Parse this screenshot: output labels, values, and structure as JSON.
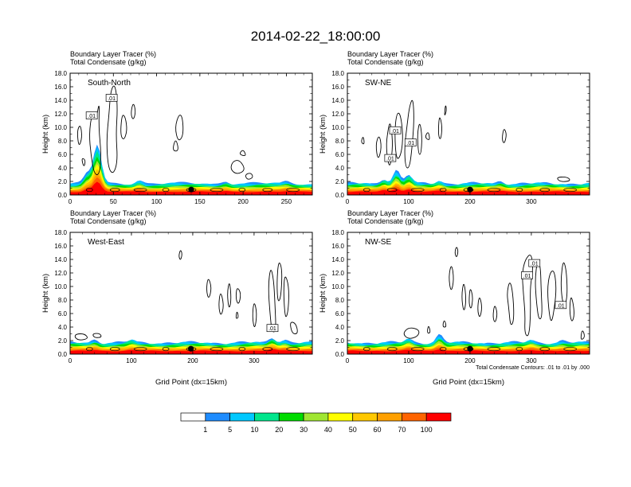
{
  "figure": {
    "title": "2014-02-22_18:00:00",
    "contour_note": "Total Condensate Contours: .01 to .01 by .000"
  },
  "colorbar": {
    "labels": [
      "1",
      "5",
      "10",
      "20",
      "30",
      "40",
      "50",
      "60",
      "70",
      "100"
    ],
    "colors": [
      "#ffffff",
      "#1e8cff",
      "#00c8ff",
      "#00e68c",
      "#00dc00",
      "#a0e632",
      "#ffff00",
      "#ffc800",
      "#ffa000",
      "#ff6400",
      "#ff0000"
    ]
  },
  "chart_data": [
    {
      "type": "heatmap",
      "title_lines": [
        "Boundary Layer Tracer   (%)",
        "Total Condensate   (g/kg)"
      ],
      "region": "South-North",
      "ylabel": "Height (km)",
      "xlabel": "",
      "xlim": [
        0,
        280
      ],
      "xticks": [
        0,
        50,
        100,
        150,
        200,
        250
      ],
      "ylim": [
        0,
        18
      ],
      "yticks": [
        "0.0",
        "2.0",
        "4.0",
        "6.0",
        "8.0",
        "10.0",
        "12.0",
        "14.0",
        "16.0",
        "18.0"
      ],
      "marker_x": 140,
      "contour_labels": [
        ".01",
        ".01"
      ],
      "contour_label_pos": [
        [
          25,
          11.7
        ],
        [
          48,
          14.3
        ]
      ]
    },
    {
      "type": "heatmap",
      "title_lines": [
        "Boundary Layer Tracer   (%)",
        "Total Condensate   (g/kg)"
      ],
      "region": "SW-NE",
      "ylabel": "Height (km)",
      "xlabel": "",
      "xlim": [
        0,
        395
      ],
      "xticks": [
        0,
        100,
        200,
        300
      ],
      "ylim": [
        0,
        18
      ],
      "yticks": [
        "0.0",
        "2.0",
        "4.0",
        "6.0",
        "8.0",
        "10.0",
        "12.0",
        "14.0",
        "16.0",
        "18.0"
      ],
      "marker_x": 200,
      "contour_labels": [
        ".01",
        ".01",
        ".01"
      ],
      "contour_label_pos": [
        [
          78,
          9.5
        ],
        [
          103,
          7.7
        ],
        [
          70,
          5.4
        ]
      ]
    },
    {
      "type": "heatmap",
      "title_lines": [
        "Boundary Layer Tracer   (%)",
        "Total Condensate   (g/kg)"
      ],
      "region": "West-East",
      "ylabel": "Height (km)",
      "xlabel": "Grid Point (dx=15km)",
      "xlim": [
        0,
        395
      ],
      "xticks": [
        0,
        100,
        200,
        300
      ],
      "ylim": [
        0,
        18
      ],
      "yticks": [
        "0.0",
        "2.0",
        "4.0",
        "6.0",
        "8.0",
        "10.0",
        "12.0",
        "14.0",
        "16.0",
        "18.0"
      ],
      "marker_x": 197,
      "contour_labels": [
        ".01"
      ],
      "contour_label_pos": [
        [
          330,
          3.8
        ]
      ]
    },
    {
      "type": "heatmap",
      "title_lines": [
        "Boundary Layer Tracer   (%)",
        "Total Condensate   (g/kg)"
      ],
      "region": "NW-SE",
      "ylabel": "Height (km)",
      "xlabel": "Grid Point (dx=15km)",
      "xlim": [
        0,
        395
      ],
      "xticks": [
        0,
        100,
        200,
        300
      ],
      "ylim": [
        0,
        18
      ],
      "yticks": [
        "0.0",
        "2.0",
        "4.0",
        "6.0",
        "8.0",
        "10.0",
        "12.0",
        "14.0",
        "16.0",
        "18.0"
      ],
      "marker_x": 200,
      "contour_labels": [
        ".01",
        ".01",
        ".01"
      ],
      "contour_label_pos": [
        [
          305,
          13.4
        ],
        [
          293,
          11.6
        ],
        [
          348,
          7.2
        ]
      ]
    }
  ]
}
